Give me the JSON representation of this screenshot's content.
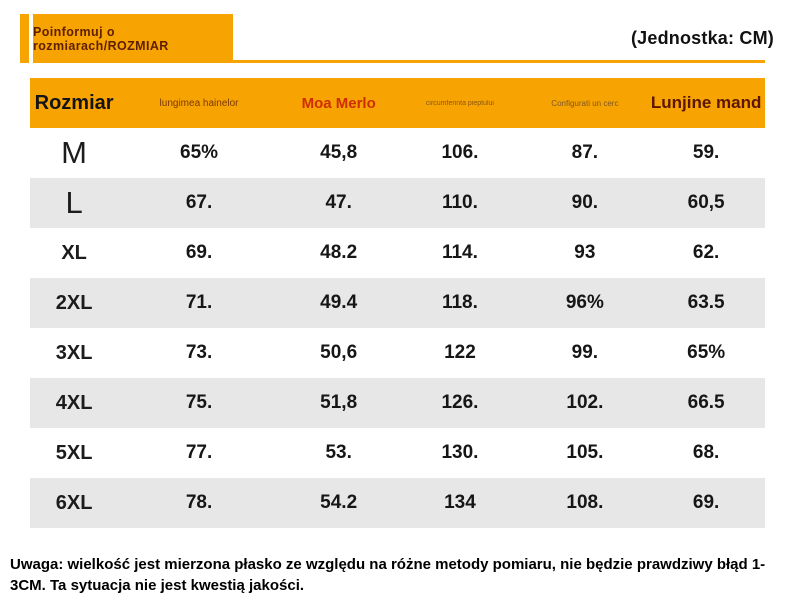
{
  "header": {
    "badge": "Poinformuj o rozmiarach/ROZMIAR",
    "unit": "(Jednostka: CM)"
  },
  "note": "Uwaga: wielkość jest mierzona płasko ze względu na różne metody pomiaru, nie będzie prawdziwy błąd 1-3CM. Ta sytuacja nie jest kwestią jakości.",
  "colors": {
    "accent_orange": "#F7A301",
    "row_alt_gray": "#E7E7E7",
    "badge_text": "#5F2000",
    "moa_merlo_red": "#CE2E05",
    "lunjine_maroon": "#5C1600"
  },
  "chart_data": {
    "type": "table",
    "title": "Poinformuj o rozmiarach/ROZMIAR",
    "unit": "(Jednostka: CM)",
    "columns": [
      "Rozmiar",
      "lungimea hainelor",
      "Moa Merlo",
      "circumferinta pieptului",
      "Configurati un cerc",
      "Lunjine mand"
    ],
    "rows": [
      [
        "M",
        "65%",
        "45,8",
        "106.",
        "87.",
        "59."
      ],
      [
        "L",
        "67.",
        "47.",
        "110.",
        "90.",
        "60,5"
      ],
      [
        "XL",
        "69.",
        "48.2",
        "114.",
        "93",
        "62."
      ],
      [
        "2XL",
        "71.",
        "49.4",
        "118.",
        "96%",
        "63.5"
      ],
      [
        "3XL",
        "73.",
        "50,6",
        "122",
        "99.",
        "65%"
      ],
      [
        "4XL",
        "75.",
        "51,8",
        "126.",
        "102.",
        "66.5"
      ],
      [
        "5XL",
        "77.",
        "53.",
        "130.",
        "105.",
        "68."
      ],
      [
        "6XL",
        "78.",
        "54.2",
        "134",
        "108.",
        "69."
      ]
    ],
    "note": "Uwaga: wielkość jest mierzona płasko ze względu na różne metody pomiaru, nie będzie prawdziwy błąd 1-3CM. Ta sytuacja nie jest kwestią jakości."
  }
}
